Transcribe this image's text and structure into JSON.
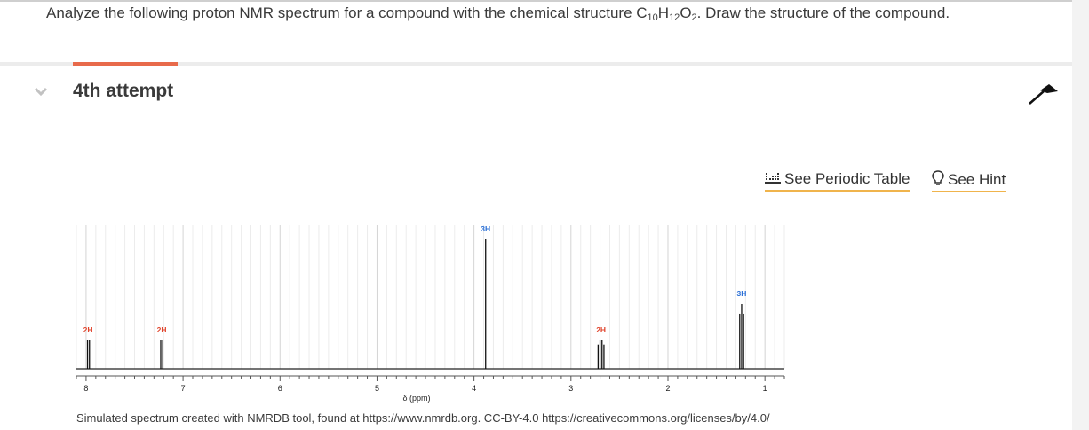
{
  "question": {
    "prefix": "Analyze the following proton NMR spectrum for a compound with the chemical structure C",
    "sub1": "10",
    "h": "H",
    "sub2": "12",
    "o": "O",
    "sub3": "2",
    "suffix": ". Draw the structure of the compound."
  },
  "attempt": {
    "title": "4th attempt"
  },
  "tools": {
    "periodic_table": "See Periodic Table",
    "hint": "See Hint"
  },
  "icons": {
    "chevron": "chevron-down-icon",
    "pin": "pin-icon",
    "periodic": "periodic-table-icon",
    "hint": "lightbulb-icon"
  },
  "colors": {
    "accent": "#e86a4b",
    "link_underline": "#f0b44c",
    "label_red": "#e0442c",
    "label_blue": "#2a6fd6"
  },
  "chart_data": {
    "type": "line",
    "xlabel": "δ (ppm)",
    "xlim": [
      8.1,
      0.8
    ],
    "tick_labels": [
      "8",
      "7",
      "6",
      "5",
      "4",
      "3",
      "2",
      "1"
    ],
    "peaks": [
      {
        "ppm": 7.98,
        "integration": "2H",
        "height": 0.22,
        "color": "red",
        "lines": [
          7.985,
          7.965
        ]
      },
      {
        "ppm": 7.22,
        "integration": "2H",
        "height": 0.22,
        "color": "red",
        "lines": [
          7.23,
          7.21
        ]
      },
      {
        "ppm": 3.88,
        "integration": "3H",
        "height": 1.0,
        "color": "blue",
        "lines": [
          3.88
        ]
      },
      {
        "ppm": 2.69,
        "integration": "2H",
        "height": 0.22,
        "color": "red",
        "lines": [
          2.72,
          2.7,
          2.68,
          2.66
        ]
      },
      {
        "ppm": 1.24,
        "integration": "3H",
        "height": 0.5,
        "color": "blue",
        "lines": [
          1.26,
          1.24,
          1.22
        ]
      }
    ]
  },
  "attribution": "Simulated spectrum created with NMRDB tool, found at https://www.nmrdb.org. CC-BY-4.0 https://creativecommons.org/licenses/by/4.0/"
}
